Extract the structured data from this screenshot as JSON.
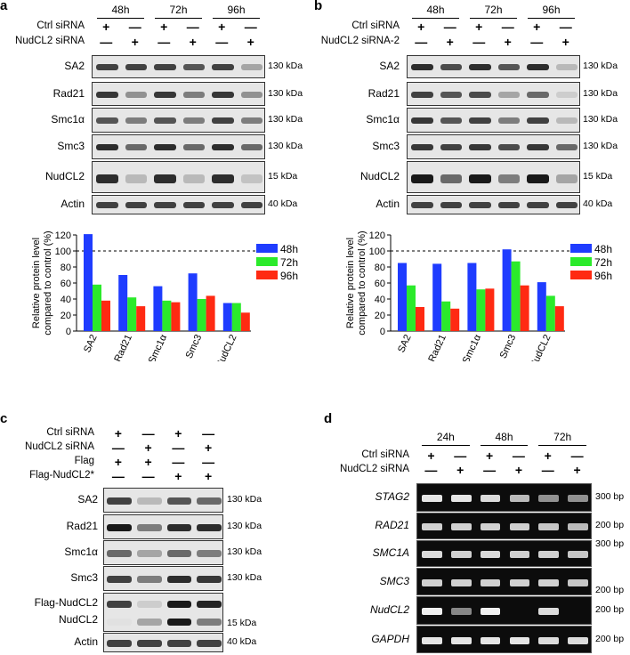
{
  "panels": {
    "a": {
      "label": "a",
      "times": [
        "48h",
        "72h",
        "96h"
      ],
      "rows": [
        {
          "label": "Ctrl siRNA",
          "signs": [
            "+",
            "—",
            "+",
            "—",
            "+",
            "—"
          ]
        },
        {
          "label": "NudCL2 siRNA",
          "signs": [
            "—",
            "+",
            "—",
            "+",
            "—",
            "+"
          ]
        }
      ],
      "blots": [
        {
          "name": "SA2",
          "kda": "130 kDa",
          "intensity": [
            0.8,
            0.8,
            0.8,
            0.7,
            0.8,
            0.3
          ]
        },
        {
          "name": "Rad21",
          "kda": "130 kDa",
          "intensity": [
            0.85,
            0.4,
            0.85,
            0.5,
            0.85,
            0.4
          ]
        },
        {
          "name": "Smc1α",
          "kda": "130 kDa",
          "intensity": [
            0.7,
            0.5,
            0.7,
            0.5,
            0.8,
            0.5
          ]
        },
        {
          "name": "Smc3",
          "kda": "130 kDa",
          "intensity": [
            0.9,
            0.6,
            0.9,
            0.6,
            0.9,
            0.6
          ]
        },
        {
          "name": "NudCL2",
          "kda": "15 kDa",
          "intensity": [
            0.9,
            0.2,
            0.9,
            0.2,
            0.9,
            0.15
          ]
        },
        {
          "name": "Actin",
          "kda": "40 kDa",
          "intensity": [
            0.8,
            0.8,
            0.8,
            0.8,
            0.8,
            0.8
          ]
        }
      ]
    },
    "b": {
      "label": "b",
      "times": [
        "48h",
        "72h",
        "96h"
      ],
      "rows": [
        {
          "label": "Ctrl siRNA",
          "signs": [
            "+",
            "—",
            "+",
            "—",
            "+",
            "—"
          ]
        },
        {
          "label": "NudCL2 siRNA-2",
          "signs": [
            "—",
            "+",
            "—",
            "+",
            "—",
            "+"
          ]
        }
      ],
      "blots": [
        {
          "name": "SA2",
          "kda": "130 kDa",
          "intensity": [
            0.9,
            0.75,
            0.9,
            0.7,
            0.9,
            0.2
          ]
        },
        {
          "name": "Rad21",
          "kda": "130 kDa",
          "intensity": [
            0.8,
            0.7,
            0.75,
            0.3,
            0.6,
            0.1
          ]
        },
        {
          "name": "Smc1α",
          "kda": "130 kDa",
          "intensity": [
            0.85,
            0.7,
            0.8,
            0.5,
            0.8,
            0.2
          ]
        },
        {
          "name": "Smc3",
          "kda": "130 kDa",
          "intensity": [
            0.85,
            0.8,
            0.85,
            0.75,
            0.85,
            0.6
          ]
        },
        {
          "name": "NudCL2",
          "kda": "15 kDa",
          "intensity": [
            1.0,
            0.6,
            1.0,
            0.5,
            1.0,
            0.3
          ]
        },
        {
          "name": "Actin",
          "kda": "40 kDa",
          "intensity": [
            0.8,
            0.8,
            0.8,
            0.8,
            0.8,
            0.8
          ]
        }
      ]
    },
    "c": {
      "label": "c",
      "rows": [
        {
          "label": "Ctrl siRNA",
          "signs": [
            "+",
            "—",
            "+",
            "—"
          ]
        },
        {
          "label": "NudCL2 siRNA",
          "signs": [
            "—",
            "+",
            "—",
            "+"
          ]
        },
        {
          "label": "Flag",
          "signs": [
            "+",
            "+",
            "—",
            "—"
          ]
        },
        {
          "label": "Flag-NudCL2*",
          "signs": [
            "—",
            "—",
            "+",
            "+"
          ]
        }
      ],
      "blots": [
        {
          "name": "SA2",
          "kda": "130 kDa",
          "intensity": [
            0.8,
            0.2,
            0.7,
            0.6
          ]
        },
        {
          "name": "Rad21",
          "kda": "130 kDa",
          "intensity": [
            1.0,
            0.5,
            0.9,
            0.9
          ]
        },
        {
          "name": "Smc1α",
          "kda": "130 kDa",
          "intensity": [
            0.6,
            0.3,
            0.6,
            0.5
          ]
        },
        {
          "name": "Smc3",
          "kda": "130 kDa",
          "intensity": [
            0.8,
            0.5,
            0.9,
            0.85
          ]
        },
        {
          "name": "Flag-NudCL2 / NudCL2",
          "kda": "15 kDa",
          "labels": [
            "Flag-NudCL2",
            "NudCL2"
          ],
          "intensity": [
            0.8,
            0.1,
            1.0,
            0.95
          ],
          "lower": [
            0.0,
            0.3,
            1.0,
            0.5
          ]
        },
        {
          "name": "Actin",
          "kda": "40 kDa",
          "intensity": [
            0.8,
            0.8,
            0.8,
            0.8
          ]
        }
      ]
    },
    "d": {
      "label": "d",
      "times": [
        "24h",
        "48h",
        "72h"
      ],
      "rows": [
        {
          "label": "Ctrl siRNA",
          "signs": [
            "+",
            "—",
            "+",
            "—",
            "+",
            "—"
          ]
        },
        {
          "label": "NudCL2 siRNA",
          "signs": [
            "—",
            "+",
            "—",
            "+",
            "—",
            "+"
          ]
        }
      ],
      "gels": [
        {
          "gene": "STAG2",
          "bp": "300 bp",
          "intensity": [
            0.9,
            0.9,
            0.85,
            0.7,
            0.5,
            0.5
          ]
        },
        {
          "gene": "RAD21",
          "bp": "200 bp",
          "intensity": [
            0.8,
            0.8,
            0.8,
            0.8,
            0.75,
            0.7
          ]
        },
        {
          "gene": "SMC1A",
          "bp": "300 bp",
          "intensity": [
            0.85,
            0.8,
            0.85,
            0.8,
            0.8,
            0.75
          ]
        },
        {
          "gene": "SMC3",
          "bp": "200 bp",
          "intensity": [
            0.8,
            0.8,
            0.8,
            0.8,
            0.8,
            0.75
          ]
        },
        {
          "gene": "NudCL2",
          "bp": "200 bp",
          "intensity": [
            0.95,
            0.45,
            0.95,
            0.0,
            0.85,
            0.0
          ]
        },
        {
          "gene": "GAPDH",
          "bp": "200 bp",
          "intensity": [
            0.9,
            0.9,
            0.9,
            0.9,
            0.85,
            0.85
          ]
        }
      ]
    }
  },
  "chart_data": [
    {
      "type": "bar",
      "panel": "a",
      "categories": [
        "SA2",
        "Rad21",
        "Smc1α",
        "Smc3",
        "NudCL2"
      ],
      "series": [
        {
          "name": "48h",
          "color": "#1f3cff",
          "values": [
            121,
            70,
            56,
            72,
            35
          ]
        },
        {
          "name": "72h",
          "color": "#2bea2b",
          "values": [
            58,
            42,
            38,
            40,
            35
          ]
        },
        {
          "name": "96h",
          "color": "#ff2a12",
          "values": [
            38,
            31,
            36,
            44,
            23
          ]
        }
      ],
      "ylabel": "Relative protein level compared to control (%)",
      "ylim": [
        0,
        120
      ],
      "yticks": [
        "0",
        "20",
        "40",
        "60",
        "80",
        "100",
        "120"
      ],
      "reference_line": 100,
      "legend": "right"
    },
    {
      "type": "bar",
      "panel": "b",
      "categories": [
        "SA2",
        "Rad21",
        "Smc1α",
        "Smc3",
        "NudCL2"
      ],
      "series": [
        {
          "name": "48h",
          "color": "#1f3cff",
          "values": [
            85,
            84,
            85,
            102,
            61
          ]
        },
        {
          "name": "72h",
          "color": "#2bea2b",
          "values": [
            57,
            37,
            52,
            87,
            44
          ]
        },
        {
          "name": "96h",
          "color": "#ff2a12",
          "values": [
            30,
            28,
            53,
            57,
            31
          ]
        }
      ],
      "ylabel": "Relative protein level compared to control (%)",
      "ylim": [
        0,
        120
      ],
      "yticks": [
        "0",
        "20",
        "40",
        "60",
        "80",
        "100",
        "120"
      ],
      "reference_line": 100,
      "legend": "right"
    }
  ],
  "colors": {
    "blot_bg": "#e6e6e6",
    "gel_bg": "#0c0c0c"
  }
}
